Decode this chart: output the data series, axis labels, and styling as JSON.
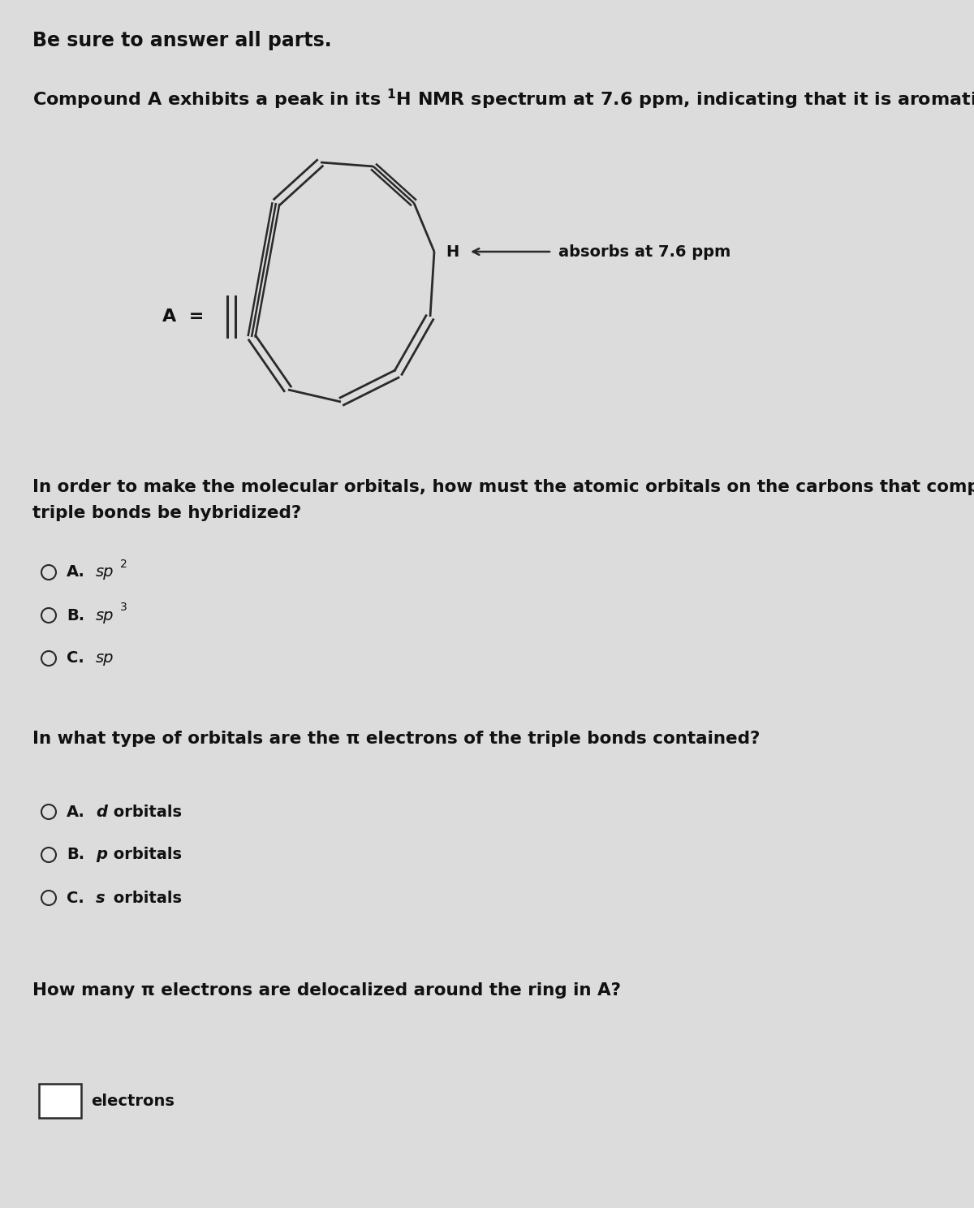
{
  "bg_color": "#dcdcdc",
  "text_color": "#111111",
  "header": "Be sure to answer all parts.",
  "q1_line1": "In order to make the molecular orbitals, how must the atomic orbitals on the carbons that comprise the",
  "q1_line2": "triple bonds be hybridized?",
  "q1_opts": [
    {
      "letter": "A.",
      "sp": "sp",
      "sup": "2"
    },
    {
      "letter": "B.",
      "sp": "sp",
      "sup": "3"
    },
    {
      "letter": "C.",
      "sp": "sp",
      "sup": ""
    }
  ],
  "q2_text": "In what type of orbitals are the π electrons of the triple bonds contained?",
  "q2_opts": [
    {
      "letter": "A.",
      "italic": "d",
      "rest": " orbitals"
    },
    {
      "letter": "B.",
      "italic": "p",
      "rest": " orbitals"
    },
    {
      "letter": "C.",
      "italic": "s",
      "rest": " orbitals"
    }
  ],
  "q3_text": "How many π electrons are delocalized around the ring in A?",
  "q3_suffix": "electrons",
  "absorbs": "absorbs at 7.6 ppm"
}
